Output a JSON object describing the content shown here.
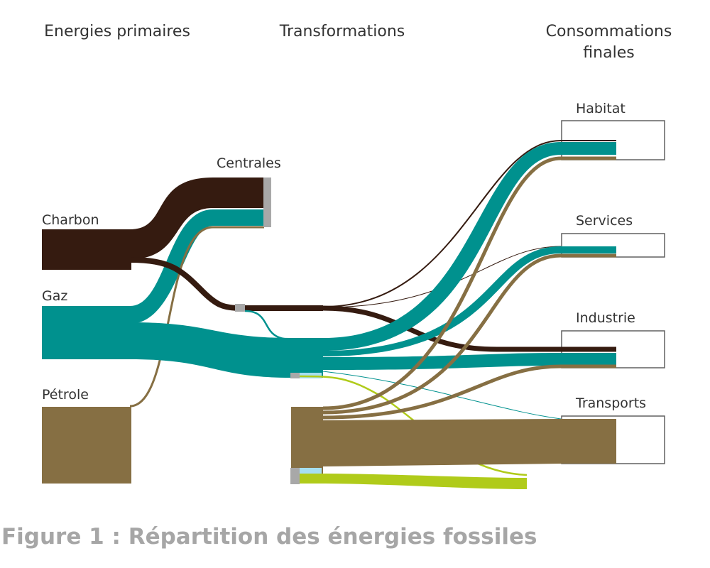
{
  "columns": {
    "primary": "Energies primaires",
    "transformations": "Transformations",
    "final": "Consommations finales"
  },
  "nodes": {
    "charbon": "Charbon",
    "gaz": "Gaz",
    "petrole": "Pétrole",
    "centrales": "Centrales",
    "habitat": "Habitat",
    "services": "Services",
    "industrie": "Industrie",
    "transports": "Transports"
  },
  "caption": "Figure 1 : Répartition des énergies fossiles",
  "colors": {
    "charbon": "#351b10",
    "gaz": "#00918e",
    "petrole": "#866f43",
    "electricity": "#a8a8a8",
    "heat": "#a6dff0",
    "biofuel": "#b0cb1a",
    "box": "#606060"
  }
}
